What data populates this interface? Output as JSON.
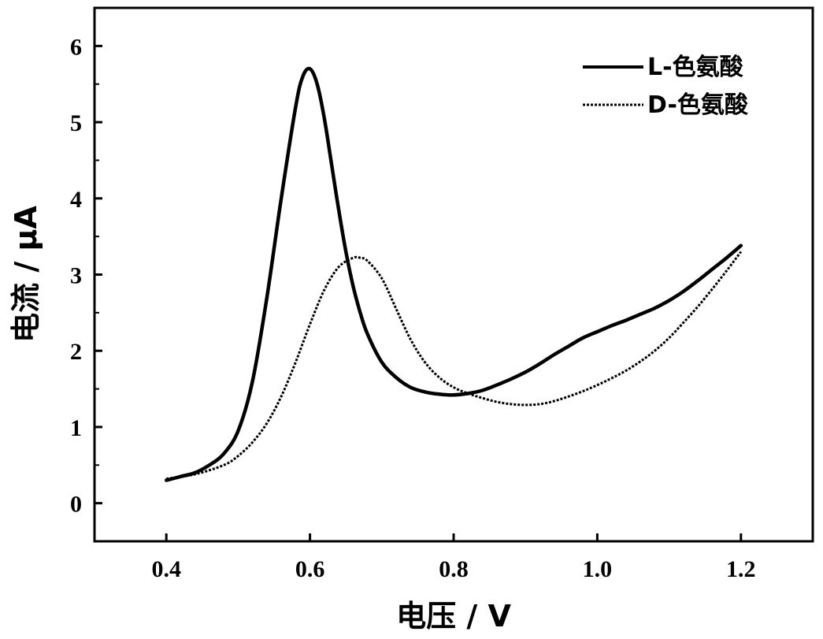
{
  "chart_data": {
    "type": "line",
    "xlabel": "电压 / V",
    "ylabel": "电流 / μA",
    "xlim": [
      0.3,
      1.3
    ],
    "ylim": [
      -0.5,
      6.5
    ],
    "xticks": [
      0.4,
      0.6,
      0.8,
      1.0,
      1.2
    ],
    "xtick_labels": [
      "0.4",
      "0.6",
      "0.8",
      "1.0",
      "1.2"
    ],
    "yticks": [
      0,
      1,
      2,
      3,
      4,
      5,
      6
    ],
    "ytick_labels": [
      "0",
      "1",
      "2",
      "3",
      "4",
      "5",
      "6"
    ],
    "grid": false,
    "legend_position": "top-right",
    "series": [
      {
        "name": "L-色氨酸",
        "line_style": "solid",
        "color": "#000000",
        "x": [
          0.4,
          0.42,
          0.44,
          0.46,
          0.48,
          0.5,
          0.52,
          0.54,
          0.56,
          0.58,
          0.59,
          0.6,
          0.61,
          0.62,
          0.63,
          0.64,
          0.65,
          0.66,
          0.67,
          0.68,
          0.7,
          0.72,
          0.74,
          0.76,
          0.78,
          0.8,
          0.82,
          0.84,
          0.86,
          0.88,
          0.9,
          0.92,
          0.94,
          0.96,
          0.98,
          1.0,
          1.02,
          1.04,
          1.06,
          1.08,
          1.1,
          1.12,
          1.14,
          1.16,
          1.18,
          1.2
        ],
        "y": [
          0.3,
          0.35,
          0.4,
          0.5,
          0.65,
          0.95,
          1.6,
          2.7,
          4.0,
          5.2,
          5.6,
          5.7,
          5.5,
          5.05,
          4.45,
          3.85,
          3.3,
          2.85,
          2.5,
          2.22,
          1.85,
          1.65,
          1.52,
          1.46,
          1.43,
          1.42,
          1.44,
          1.48,
          1.55,
          1.63,
          1.72,
          1.83,
          1.95,
          2.06,
          2.17,
          2.25,
          2.33,
          2.4,
          2.48,
          2.56,
          2.66,
          2.78,
          2.92,
          3.07,
          3.22,
          3.38
        ]
      },
      {
        "name": "D-色氨酸",
        "line_style": "dotted",
        "color": "#000000",
        "x": [
          0.4,
          0.44,
          0.48,
          0.5,
          0.52,
          0.54,
          0.56,
          0.58,
          0.6,
          0.62,
          0.64,
          0.66,
          0.67,
          0.68,
          0.7,
          0.72,
          0.74,
          0.76,
          0.78,
          0.8,
          0.82,
          0.84,
          0.86,
          0.88,
          0.9,
          0.92,
          0.94,
          0.96,
          0.98,
          1.0,
          1.02,
          1.04,
          1.06,
          1.08,
          1.1,
          1.12,
          1.14,
          1.16,
          1.18,
          1.2
        ],
        "y": [
          0.32,
          0.38,
          0.5,
          0.62,
          0.8,
          1.05,
          1.4,
          1.85,
          2.35,
          2.8,
          3.1,
          3.22,
          3.22,
          3.18,
          2.95,
          2.55,
          2.15,
          1.85,
          1.65,
          1.52,
          1.44,
          1.38,
          1.33,
          1.3,
          1.29,
          1.3,
          1.34,
          1.4,
          1.47,
          1.55,
          1.64,
          1.74,
          1.86,
          2.0,
          2.17,
          2.37,
          2.58,
          2.81,
          3.05,
          3.3
        ]
      }
    ]
  }
}
